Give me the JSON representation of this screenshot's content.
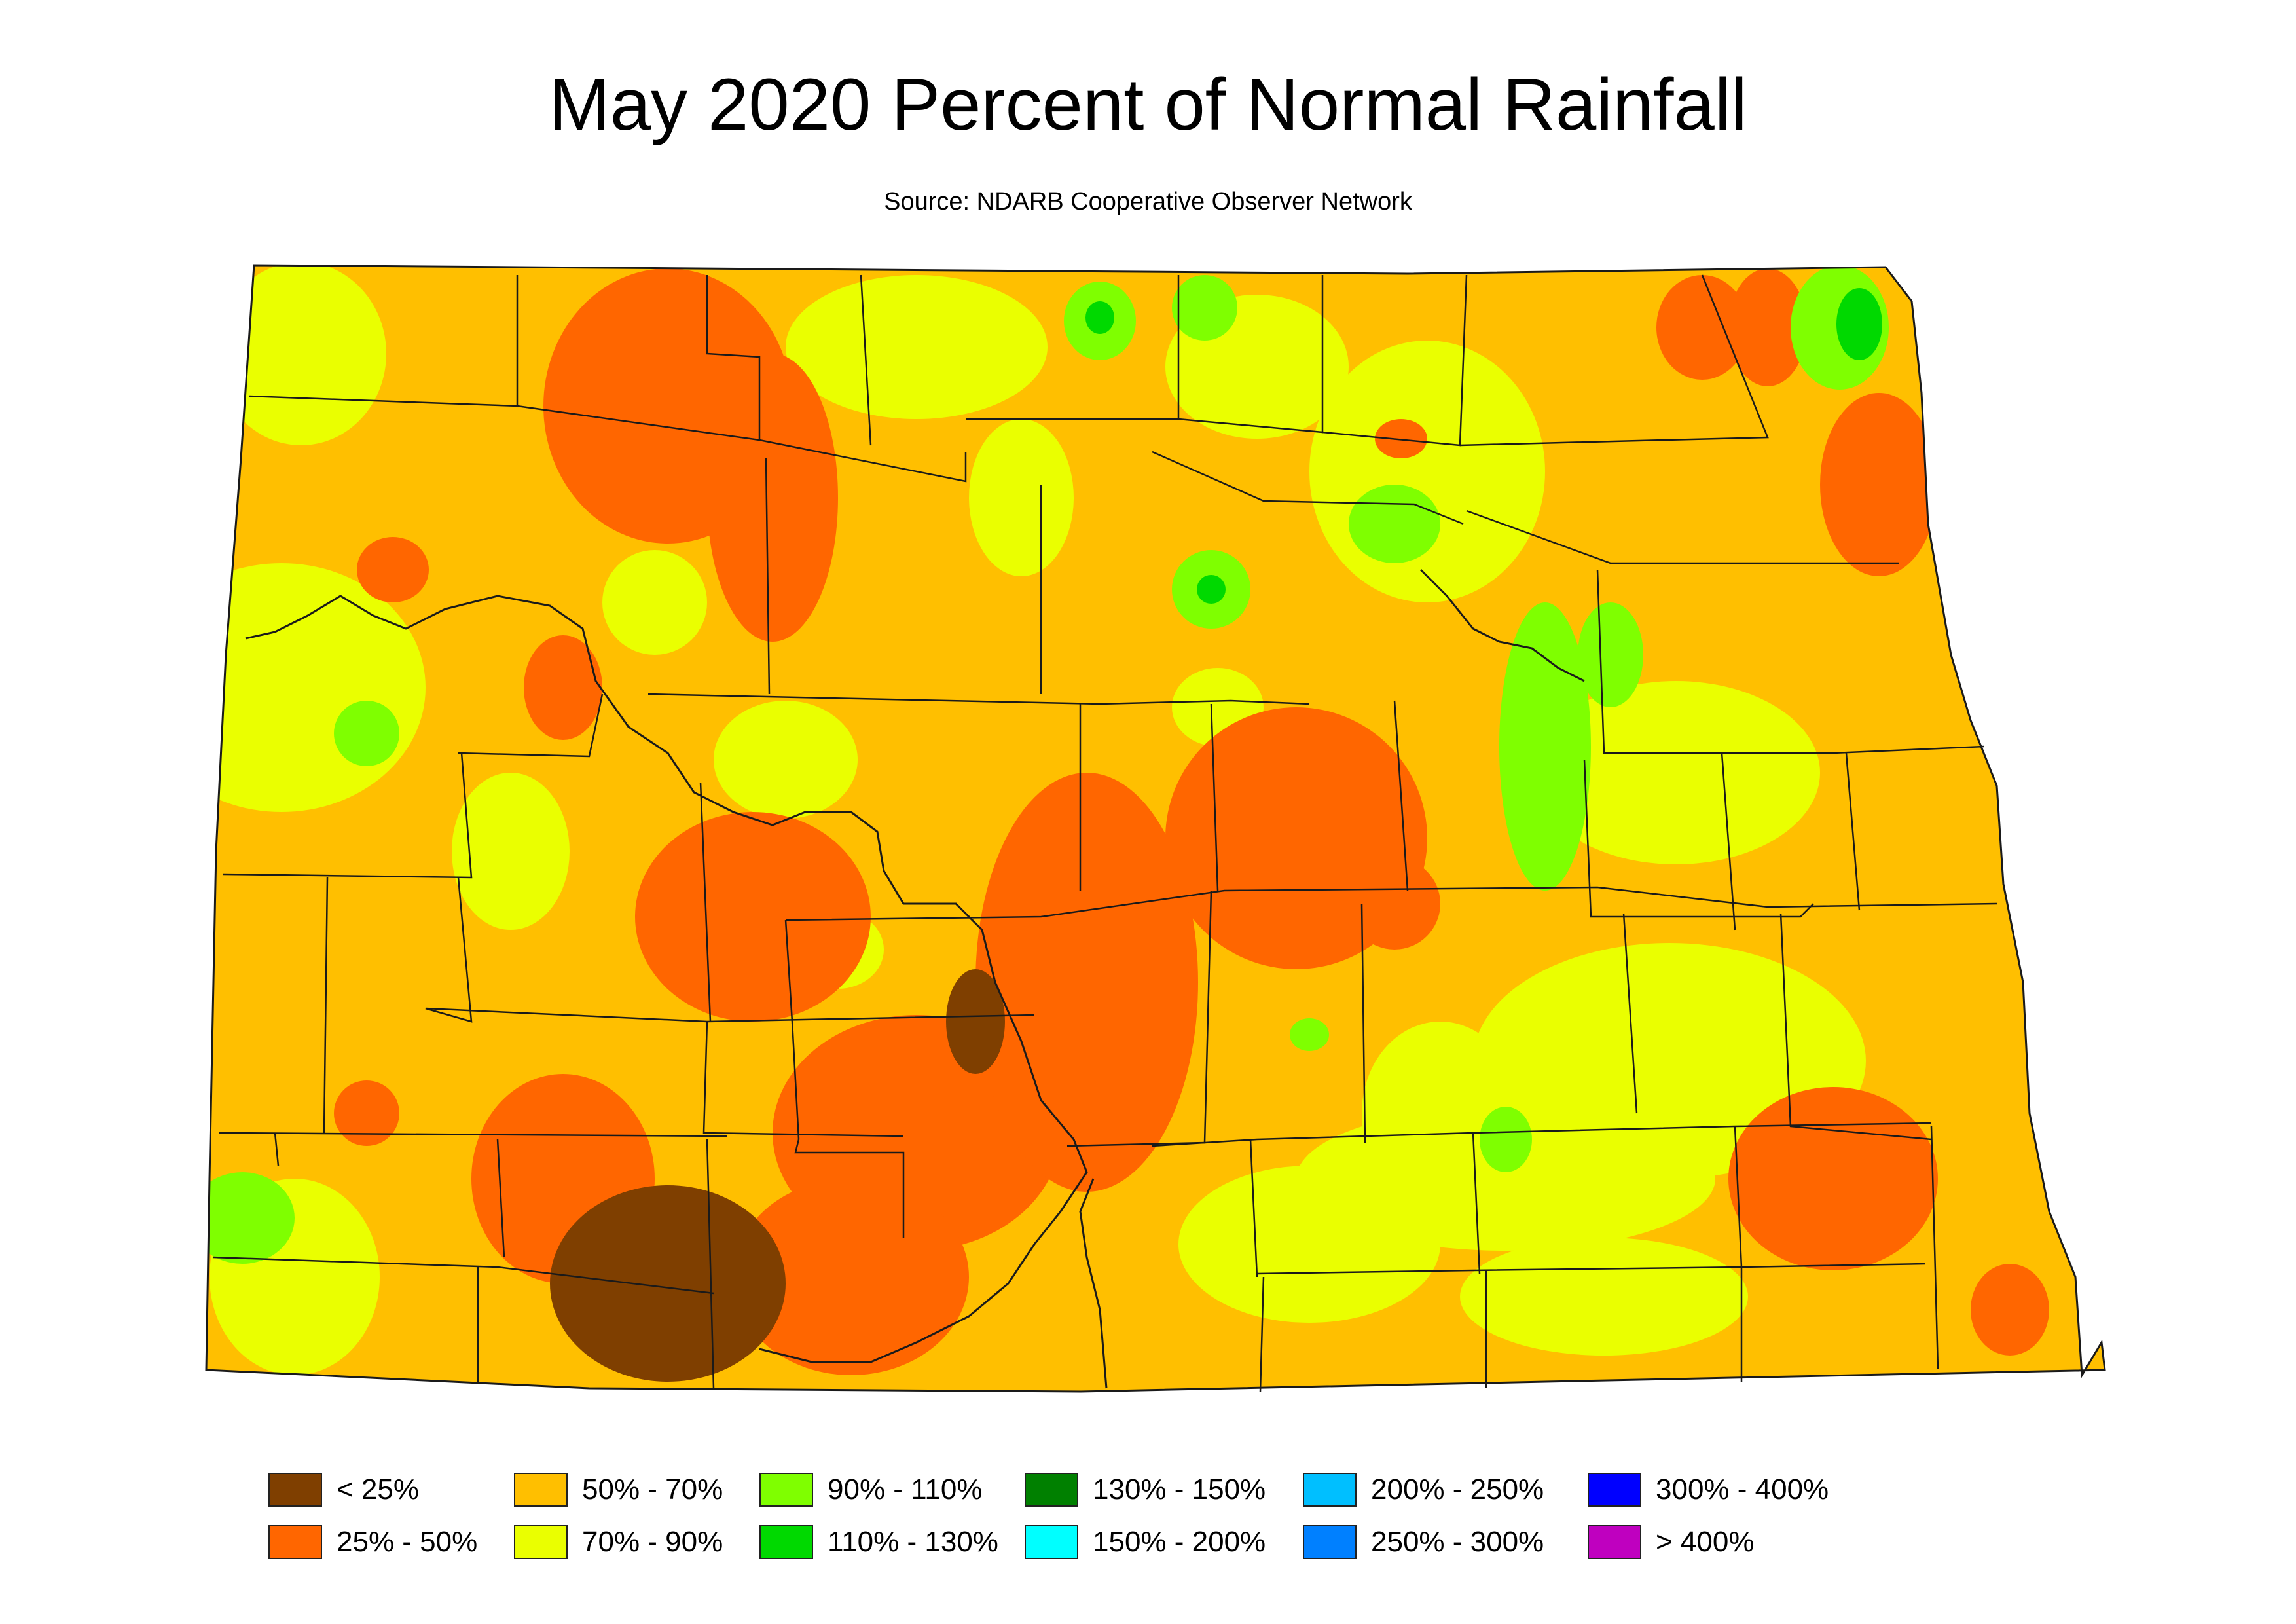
{
  "title": "May 2020 Percent of Normal Rainfall",
  "subtitle": "Source: NDARB Cooperative Observer Network",
  "colors": {
    "outline": "#1a1a1a",
    "river": "#1a1a1a",
    "background": "#ffffff"
  },
  "legend": [
    {
      "label": "< 25%",
      "color": "#7f3f00"
    },
    {
      "label": "25% - 50%",
      "color": "#ff6600"
    },
    {
      "label": "50% - 70%",
      "color": "#ffbf00"
    },
    {
      "label": "70% - 90%",
      "color": "#eaff00"
    },
    {
      "label": "90% - 110%",
      "color": "#7fff00"
    },
    {
      "label": "110% - 130%",
      "color": "#00d900"
    },
    {
      "label": "130% - 150%",
      "color": "#008000"
    },
    {
      "label": "150% - 200%",
      "color": "#00ffff"
    },
    {
      "label": "200% - 250%",
      "color": "#00bfff"
    },
    {
      "label": "250% - 300%",
      "color": "#0080ff"
    },
    {
      "label": "300% - 400%",
      "color": "#0000ff"
    },
    {
      "label": "> 400%",
      "color": "#bf00bf"
    }
  ]
}
